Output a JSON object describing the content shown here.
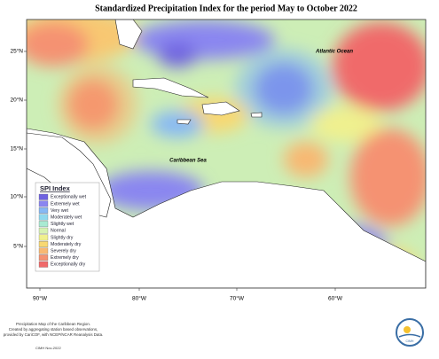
{
  "title": "Standardized Precipitation Index for the period May to October 2022",
  "map_labels": [
    "Atlantic Ocean",
    "Caribbean Sea"
  ],
  "latitude_labels": [
    "25°N",
    "20°N",
    "15°N",
    "10°N",
    "5°N"
  ],
  "longitude_labels": [
    "90°W",
    "80°W",
    "70°W",
    "60°W"
  ],
  "legend": {
    "title": "SPI Index",
    "items": [
      {
        "label": "Exceptionally wet",
        "color": "#6f63e0"
      },
      {
        "label": "Extremely wet",
        "color": "#8a86f0"
      },
      {
        "label": "Very wet",
        "color": "#86b8f4"
      },
      {
        "label": "Moderately wet",
        "color": "#8fd8ee"
      },
      {
        "label": "Slightly wet",
        "color": "#a9ead2"
      },
      {
        "label": "Normal",
        "color": "#d6f2b2"
      },
      {
        "label": "Slightly dry",
        "color": "#f0f08e"
      },
      {
        "label": "Moderately dry",
        "color": "#f8d872"
      },
      {
        "label": "Severely dry",
        "color": "#f8b872"
      },
      {
        "label": "Extremely dry",
        "color": "#f59272"
      },
      {
        "label": "Exceptionally dry",
        "color": "#f06a6a"
      }
    ]
  },
  "footer": {
    "lines": [
      "Precipitation Map of the Caribbean Region.",
      "Created by aggregating station based observations,",
      "provided by CariCOF, with NCEP/NCAR Reanalysis Data."
    ],
    "credit": "CIMH Nov-2022"
  },
  "logo_text": "CIMH"
}
